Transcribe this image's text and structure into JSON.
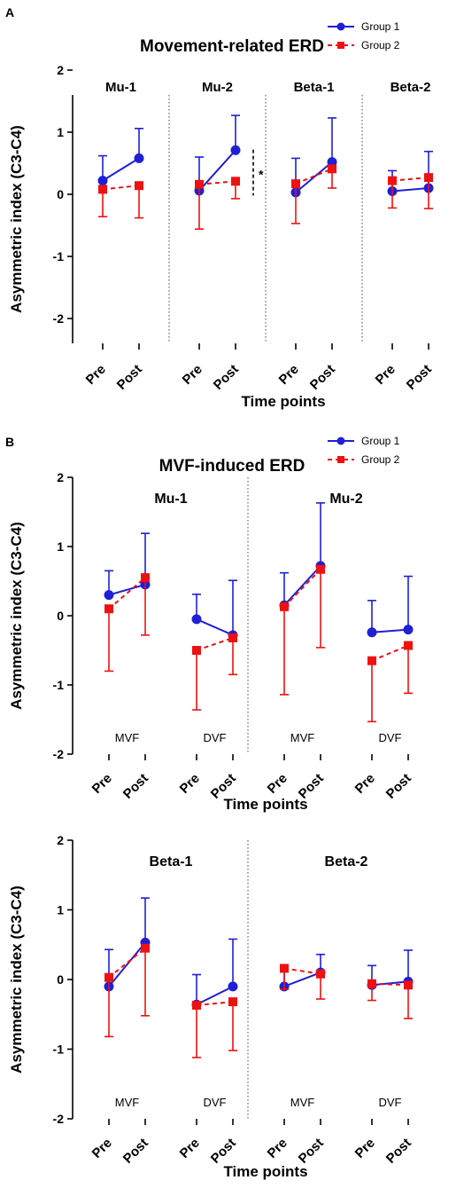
{
  "colors": {
    "group1": "#1f1fd6",
    "group2": "#ee1111"
  },
  "legend": {
    "group1": "Group 1",
    "group2": "Group 2"
  },
  "chart_data": [
    {
      "panel_label": "A",
      "type": "line",
      "title": "Movement-related ERD",
      "ylabel": "Asymmetric index (C3-C4)",
      "xlabel": "Time points",
      "ylim": [
        -2,
        2
      ],
      "yticks": [
        "2",
        "1",
        "0",
        "-1",
        "-2"
      ],
      "legend_position": "top-right",
      "significance": "*",
      "groups": [
        {
          "title": "Mu-1",
          "condition": "",
          "x": [
            "Pre",
            "Post"
          ],
          "series": [
            {
              "name": "Group 1",
              "values": [
                0.22,
                0.58
              ],
              "err": [
                0.4,
                0.48
              ]
            },
            {
              "name": "Group 2",
              "values": [
                0.08,
                0.14
              ],
              "err": [
                0.44,
                0.52
              ]
            }
          ]
        },
        {
          "title": "Mu-2",
          "condition": "",
          "x": [
            "Pre",
            "Post"
          ],
          "series": [
            {
              "name": "Group 1",
              "values": [
                0.06,
                0.71
              ],
              "err": [
                0.54,
                0.56
              ]
            },
            {
              "name": "Group 2",
              "values": [
                0.16,
                0.21
              ],
              "err": [
                0.72,
                0.28
              ]
            }
          ]
        },
        {
          "title": "Beta-1",
          "condition": "",
          "x": [
            "Pre",
            "Post"
          ],
          "series": [
            {
              "name": "Group 1",
              "values": [
                0.03,
                0.52
              ],
              "err": [
                0.55,
                0.71
              ]
            },
            {
              "name": "Group 2",
              "values": [
                0.17,
                0.41
              ],
              "err": [
                0.64,
                0.31
              ]
            }
          ]
        },
        {
          "title": "Beta-2",
          "condition": "",
          "x": [
            "Pre",
            "Post"
          ],
          "series": [
            {
              "name": "Group 1",
              "values": [
                0.05,
                0.1
              ],
              "err": [
                0.33,
                0.59
              ]
            },
            {
              "name": "Group 2",
              "values": [
                0.22,
                0.27
              ],
              "err": [
                0.44,
                0.5
              ]
            }
          ]
        }
      ]
    },
    {
      "panel_label": "B",
      "type": "line",
      "title": "MVF-induced ERD",
      "ylabel": "Asymmetric index (C3-C4)",
      "xlabel": "Time points",
      "ylim": [
        -2,
        2
      ],
      "yticks": [
        "2",
        "1",
        "0",
        "-1",
        "-2"
      ],
      "legend_position": "top-right",
      "sections": [
        "Mu-1",
        "Mu-2"
      ],
      "groups": [
        {
          "title": "",
          "condition": "MVF",
          "x": [
            "Pre",
            "Post"
          ],
          "series": [
            {
              "name": "Group 1",
              "values": [
                0.3,
                0.45
              ],
              "err": [
                0.35,
                0.74
              ]
            },
            {
              "name": "Group 2",
              "values": [
                0.1,
                0.55
              ],
              "err": [
                0.9,
                0.83
              ]
            }
          ]
        },
        {
          "title": "",
          "condition": "DVF",
          "x": [
            "Pre",
            "Post"
          ],
          "series": [
            {
              "name": "Group 1",
              "values": [
                -0.05,
                -0.28
              ],
              "err": [
                0.36,
                0.79
              ]
            },
            {
              "name": "Group 2",
              "values": [
                -0.5,
                -0.32
              ],
              "err": [
                0.86,
                0.53
              ]
            }
          ]
        },
        {
          "title": "",
          "condition": "MVF",
          "x": [
            "Pre",
            "Post"
          ],
          "series": [
            {
              "name": "Group 1",
              "values": [
                0.15,
                0.72
              ],
              "err": [
                0.47,
                0.91
              ]
            },
            {
              "name": "Group 2",
              "values": [
                0.13,
                0.67
              ],
              "err": [
                1.27,
                1.13
              ]
            }
          ]
        },
        {
          "title": "",
          "condition": "DVF",
          "x": [
            "Pre",
            "Post"
          ],
          "series": [
            {
              "name": "Group 1",
              "values": [
                -0.24,
                -0.2
              ],
              "err": [
                0.46,
                0.77
              ]
            },
            {
              "name": "Group 2",
              "values": [
                -0.65,
                -0.43
              ],
              "err": [
                0.88,
                0.69
              ]
            }
          ]
        }
      ]
    },
    {
      "panel_label": "",
      "type": "line",
      "title": "",
      "ylabel": "Asymmetric index (C3-C4)",
      "xlabel": "Time points",
      "ylim": [
        -2,
        2
      ],
      "yticks": [
        "2",
        "1",
        "0",
        "-1",
        "-2"
      ],
      "sections": [
        "Beta-1",
        "Beta-2"
      ],
      "groups": [
        {
          "title": "",
          "condition": "MVF",
          "x": [
            "Pre",
            "Post"
          ],
          "series": [
            {
              "name": "Group 1",
              "values": [
                -0.1,
                0.53
              ],
              "err": [
                0.53,
                0.64
              ]
            },
            {
              "name": "Group 2",
              "values": [
                0.03,
                0.45
              ],
              "err": [
                0.85,
                0.97
              ]
            }
          ]
        },
        {
          "title": "",
          "condition": "DVF",
          "x": [
            "Pre",
            "Post"
          ],
          "series": [
            {
              "name": "Group 1",
              "values": [
                -0.36,
                -0.1
              ],
              "err": [
                0.43,
                0.68
              ]
            },
            {
              "name": "Group 2",
              "values": [
                -0.37,
                -0.32
              ],
              "err": [
                0.75,
                0.7
              ]
            }
          ]
        },
        {
          "title": "",
          "condition": "MVF",
          "x": [
            "Pre",
            "Post"
          ],
          "series": [
            {
              "name": "Group 1",
              "values": [
                -0.1,
                0.1
              ],
              "err": [
                0.3,
                0.26
              ]
            },
            {
              "name": "Group 2",
              "values": [
                0.16,
                0.08
              ],
              "err": [
                0.3,
                0.36
              ]
            }
          ]
        },
        {
          "title": "",
          "condition": "DVF",
          "x": [
            "Pre",
            "Post"
          ],
          "series": [
            {
              "name": "Group 1",
              "values": [
                -0.08,
                -0.03
              ],
              "err": [
                0.28,
                0.45
              ]
            },
            {
              "name": "Group 2",
              "values": [
                -0.06,
                -0.08
              ],
              "err": [
                0.24,
                0.48
              ]
            }
          ]
        }
      ]
    }
  ]
}
